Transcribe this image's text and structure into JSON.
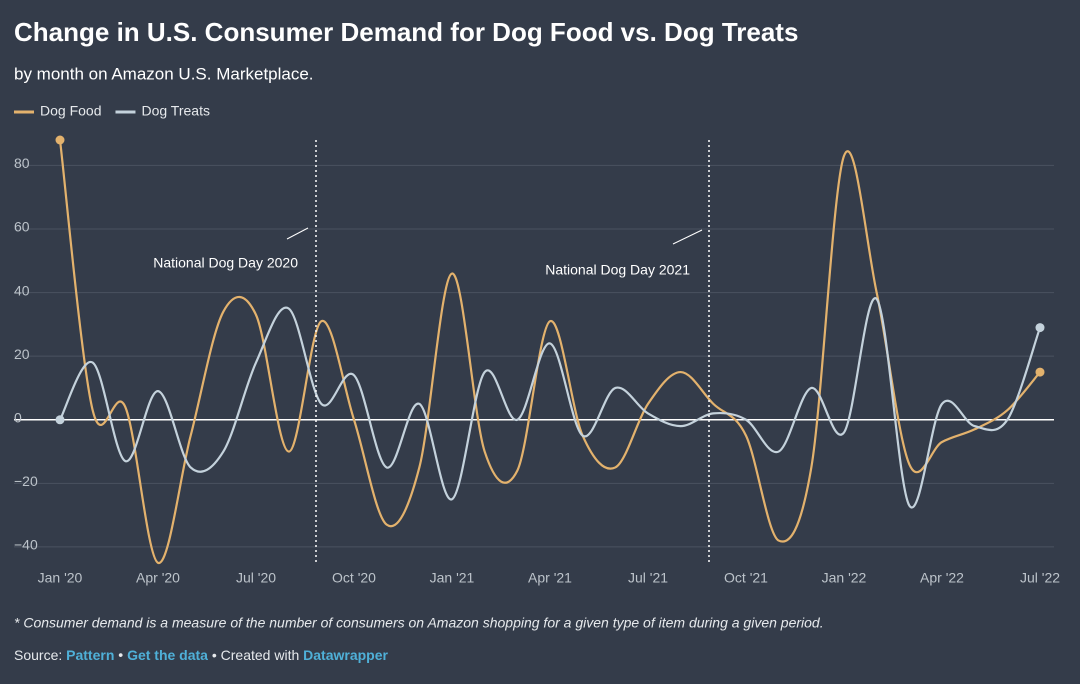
{
  "chart_data": {
    "type": "line",
    "title": "Change in U.S. Consumer Demand for Dog Food vs. Dog Treats",
    "subtitle": "by month on Amazon U.S. Marketplace.",
    "categories": [
      "Jan '20",
      null,
      null,
      "Apr '20",
      null,
      null,
      "Jul '20",
      null,
      null,
      "Oct '20",
      null,
      null,
      "Jan '21",
      null,
      null,
      "Apr '21",
      null,
      null,
      "Jul '21",
      null,
      null,
      "Oct '21",
      null,
      null,
      "Jan '22",
      null,
      null,
      "Apr '22",
      null,
      null,
      "Jul '22"
    ],
    "series": [
      {
        "name": "Dog Food",
        "color": "#e3b26d",
        "values": [
          88,
          3,
          4,
          -45,
          -5,
          34,
          33,
          -10,
          31,
          0,
          -33,
          -15,
          46,
          -10,
          -16,
          31,
          -5,
          -15,
          5,
          15,
          5,
          -5,
          -38,
          -15,
          83,
          40,
          -14,
          -7,
          -3,
          3,
          15
        ]
      },
      {
        "name": "Dog Treats",
        "color": "#c4d2dc",
        "values": [
          0,
          18,
          -13,
          9,
          -15,
          -10,
          18,
          35,
          5,
          14,
          -15,
          5,
          -25,
          15,
          0,
          24,
          -5,
          10,
          2,
          -2,
          2,
          0,
          -10,
          10,
          -4,
          38,
          -27,
          5,
          -2,
          0,
          29
        ]
      }
    ],
    "ylim": [
      -46,
      88
    ],
    "yticks": [
      {
        "value": -40,
        "label": "−40"
      },
      {
        "value": -20,
        "label": "−20"
      },
      0,
      20,
      40,
      60,
      80
    ],
    "grid": true,
    "legend": "top-left",
    "annotations": [
      "National Dog Day 2020",
      "National Dog Day 2021"
    ],
    "note": "* Consumer demand is a measure of the number of consumers on Amazon shopping for a given type of item during a given period.",
    "source": {
      "prefix": "Source:",
      "source_name": "Pattern",
      "get_data": "Get the data",
      "created": "• Created with",
      "tool": "Datawrapper"
    }
  }
}
